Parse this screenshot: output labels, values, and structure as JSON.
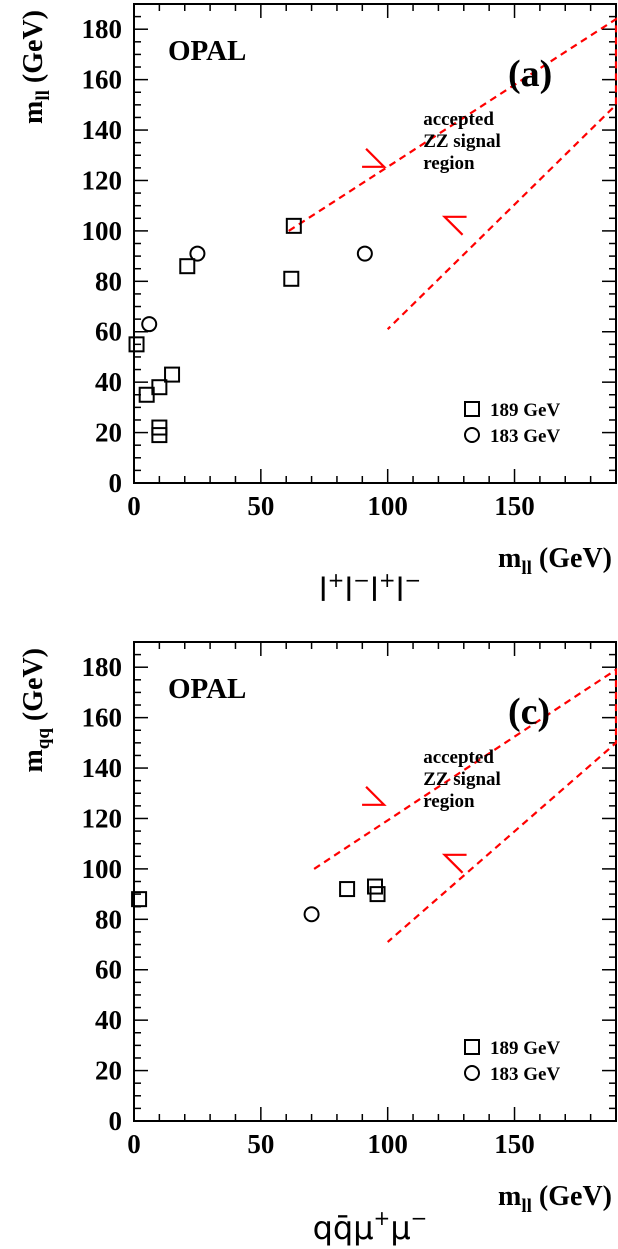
{
  "chart_data": [
    {
      "type": "scatter",
      "panel_label": "(a)",
      "experiment": "OPAL",
      "xlabel": {
        "main": "m",
        "sub": "ll",
        "unit": " (GeV)"
      },
      "ylabel": {
        "main": "m",
        "sub": "ll",
        "unit": " (GeV)"
      },
      "channel": {
        "parts": [
          [
            "l",
            "+"
          ],
          [
            "l",
            "−"
          ],
          [
            "l",
            "+"
          ],
          [
            "l",
            "−"
          ]
        ]
      },
      "xlim": [
        0,
        190
      ],
      "ylim": [
        0,
        190
      ],
      "xticks": [
        0,
        50,
        100,
        150
      ],
      "yticks": [
        0,
        20,
        40,
        60,
        80,
        100,
        120,
        140,
        160,
        180
      ],
      "region_label": [
        "accepted",
        "ZZ signal",
        "region"
      ],
      "signal_region": [
        [
          61,
          100
        ],
        [
          190,
          184
        ],
        [
          190,
          150
        ],
        [
          100,
          61
        ]
      ],
      "series": [
        {
          "name": "189 GeV",
          "marker": "square",
          "points": [
            [
              1,
              55
            ],
            [
              5,
              35
            ],
            [
              10,
              38
            ],
            [
              15,
              43
            ],
            [
              10,
              22
            ],
            [
              10,
              19
            ],
            [
              21,
              86
            ],
            [
              63,
              102
            ],
            [
              62,
              81
            ]
          ]
        },
        {
          "name": "183 GeV",
          "marker": "circle",
          "points": [
            [
              6,
              63
            ],
            [
              25,
              91
            ],
            [
              91,
              91
            ]
          ]
        }
      ],
      "legend_position": "bottom-right"
    },
    {
      "type": "scatter",
      "panel_label": "(c)",
      "experiment": "OPAL",
      "xlabel": {
        "main": "m",
        "sub": "ll",
        "unit": " (GeV)"
      },
      "ylabel": {
        "main": "m",
        "sub": "qq",
        "unit": " (GeV)"
      },
      "channel": {
        "parts": [
          [
            "q",
            ""
          ],
          [
            "q̄",
            ""
          ],
          [
            "μ",
            "+"
          ],
          [
            "μ",
            "−"
          ]
        ]
      },
      "xlim": [
        0,
        190
      ],
      "ylim": [
        0,
        190
      ],
      "xticks": [
        0,
        50,
        100,
        150
      ],
      "yticks": [
        0,
        20,
        40,
        60,
        80,
        100,
        120,
        140,
        160,
        180
      ],
      "region_label": [
        "accepted",
        "ZZ signal",
        "region"
      ],
      "signal_region": [
        [
          71,
          100
        ],
        [
          190,
          179
        ],
        [
          190,
          150
        ],
        [
          100,
          71
        ]
      ],
      "series": [
        {
          "name": "189 GeV",
          "marker": "square",
          "points": [
            [
              2,
              88
            ],
            [
              84,
              92
            ],
            [
              95,
              93
            ],
            [
              96,
              90
            ]
          ]
        },
        {
          "name": "183 GeV",
          "marker": "circle",
          "points": [
            [
              70,
              82
            ]
          ]
        }
      ],
      "legend_position": "bottom-right"
    }
  ]
}
